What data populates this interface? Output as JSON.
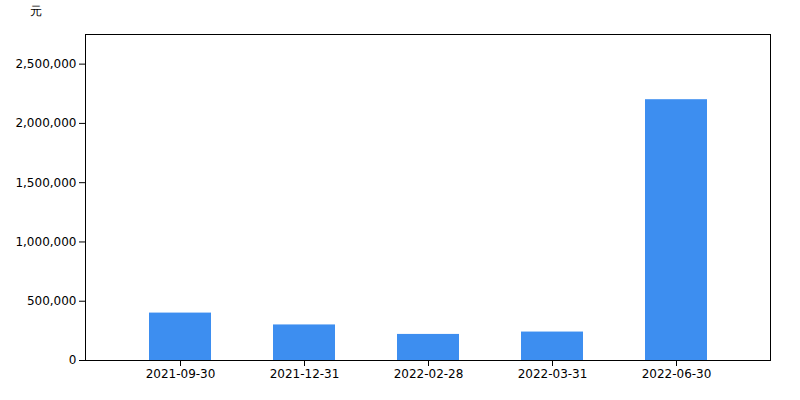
{
  "chart_data": {
    "type": "bar",
    "ylabel": "元",
    "categories": [
      "2021-09-30",
      "2021-12-31",
      "2022-02-28",
      "2022-03-31",
      "2022-06-30"
    ],
    "values": [
      400000,
      300000,
      220000,
      240000,
      2200000
    ],
    "color": "#3d8ef0",
    "ylim": [
      0,
      2750000
    ],
    "yticks": [
      0,
      {
        "value": 500000,
        "label": "500,000"
      },
      {
        "value": 1000000,
        "label": "1,000,000"
      },
      {
        "value": 1500000,
        "label": "1,500,000"
      },
      {
        "value": 2000000,
        "label": "2,000,000"
      },
      {
        "value": 2500000,
        "label": "2,500,000"
      }
    ],
    "grid": false
  }
}
